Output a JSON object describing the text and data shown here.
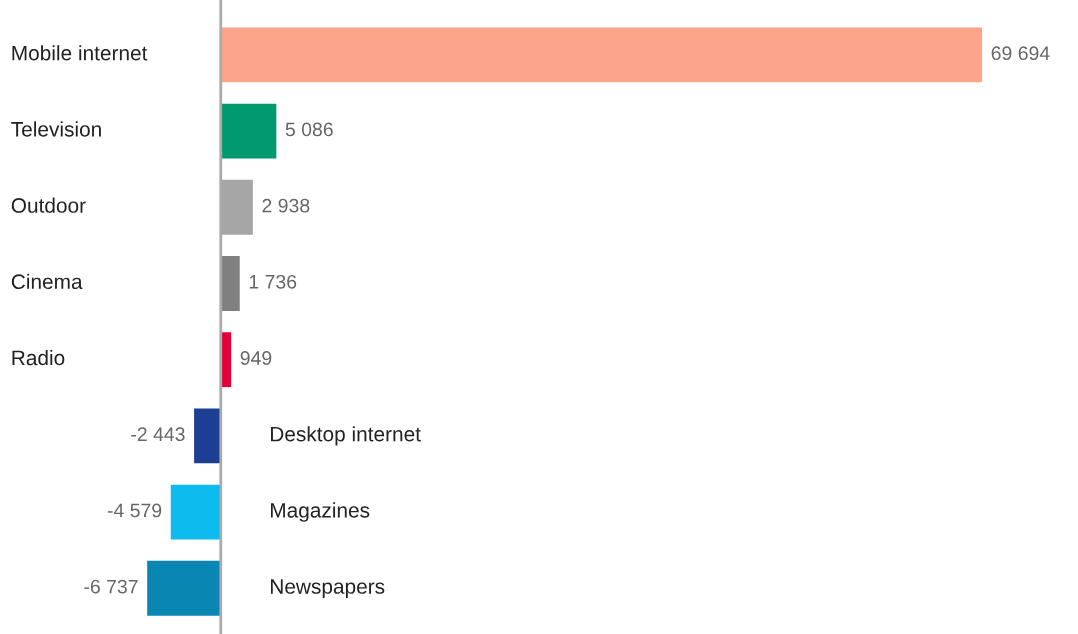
{
  "chart_data": {
    "type": "bar",
    "orientation": "horizontal",
    "categories": [
      "Mobile internet",
      "Television",
      "Outdoor",
      "Cinema",
      "Radio",
      "Desktop internet",
      "Magazines",
      "Newspapers"
    ],
    "values": [
      69694,
      5086,
      2938,
      1736,
      949,
      -2443,
      -4579,
      -6737
    ],
    "value_labels": [
      "69 694",
      "5 086",
      "2 938",
      "1 736",
      "949",
      "-2 443",
      "-4 579",
      "-6 737"
    ],
    "colors": [
      "#fca58a",
      "#009a6e",
      "#a6a6a6",
      "#808080",
      "#e4003a",
      "#1c3f94",
      "#0dbbee",
      "#0a86b3"
    ],
    "legend": false
  }
}
